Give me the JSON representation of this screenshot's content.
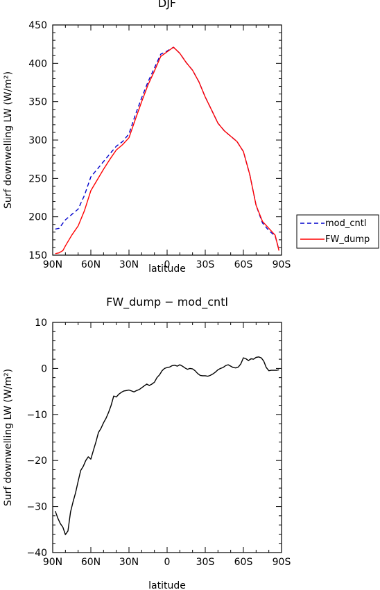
{
  "chart_data": [
    {
      "type": "line",
      "title": "DJF",
      "xlabel": "latitude",
      "ylabel": "Surf downwelling LW (W/m²)",
      "xlim": [
        -90,
        90
      ],
      "ylim": [
        150,
        450
      ],
      "x_ticks": [
        -90,
        -60,
        -30,
        0,
        30,
        60,
        90
      ],
      "x_tick_labels": [
        "90N",
        "60N",
        "30N",
        "0",
        "30S",
        "60S",
        "90S"
      ],
      "y_ticks": [
        150,
        200,
        250,
        300,
        350,
        400,
        450
      ],
      "y_tick_labels": [
        "150",
        "200",
        "250",
        "300",
        "350",
        "400",
        "450"
      ],
      "grid": false,
      "legend_position": "right",
      "series": [
        {
          "name": "mod_cntl",
          "color": "#0000cc",
          "dash": "dashed",
          "x": [
            -88,
            -85,
            -80,
            -75,
            -70,
            -65,
            -60,
            -55,
            -50,
            -45,
            -40,
            -35,
            -30,
            -25,
            -20,
            -15,
            -10,
            -5,
            0,
            5,
            10,
            15,
            20,
            25,
            30,
            35,
            40,
            45,
            50,
            55,
            60,
            65,
            70,
            75,
            80,
            85,
            88
          ],
          "y": [
            184,
            185,
            196,
            203,
            210,
            228,
            252,
            262,
            272,
            282,
            292,
            298,
            308,
            333,
            355,
            376,
            394,
            412,
            416,
            421,
            413,
            401,
            391,
            376,
            356,
            339,
            322,
            312,
            305,
            298,
            285,
            255,
            215,
            192,
            182,
            175,
            157
          ]
        },
        {
          "name": "FW_dump",
          "color": "#ff0000",
          "dash": "solid",
          "x": [
            -88,
            -85,
            -82,
            -80,
            -75,
            -70,
            -65,
            -60,
            -55,
            -50,
            -45,
            -40,
            -35,
            -30,
            -25,
            -20,
            -15,
            -10,
            -5,
            0,
            5,
            10,
            15,
            20,
            25,
            30,
            35,
            40,
            45,
            50,
            55,
            60,
            65,
            70,
            75,
            80,
            85,
            88
          ],
          "y": [
            152,
            153,
            156,
            162,
            176,
            188,
            208,
            234,
            248,
            262,
            275,
            287,
            294,
            303,
            327,
            350,
            372,
            390,
            409,
            415,
            421,
            413,
            401,
            391,
            376,
            356,
            339,
            322,
            312,
            305,
            298,
            285,
            255,
            215,
            194,
            185,
            176,
            156
          ]
        }
      ]
    },
    {
      "type": "line",
      "title": "FW_dump − mod_cntl",
      "xlabel": "latitude",
      "ylabel": "Surf downwelling LW (W/m²)",
      "xlim": [
        -90,
        90
      ],
      "ylim": [
        -40,
        10
      ],
      "x_ticks": [
        -90,
        -60,
        -30,
        0,
        30,
        60,
        90
      ],
      "x_tick_labels": [
        "90N",
        "60N",
        "30N",
        "0",
        "30S",
        "60S",
        "90S"
      ],
      "y_ticks": [
        -40,
        -30,
        -20,
        -10,
        0,
        10
      ],
      "y_tick_labels": [
        "−40",
        "−30",
        "−20",
        "−10",
        "0",
        "10"
      ],
      "grid": false,
      "series": [
        {
          "color": "#000000",
          "dash": "solid",
          "x": [
            -88,
            -86,
            -84,
            -82,
            -80,
            -78,
            -76,
            -74,
            -72,
            -70,
            -68,
            -66,
            -64,
            -62,
            -60,
            -58,
            -56,
            -54,
            -52,
            -50,
            -48,
            -46,
            -44,
            -42,
            -40,
            -38,
            -36,
            -34,
            -32,
            -30,
            -28,
            -26,
            -24,
            -22,
            -20,
            -18,
            -16,
            -14,
            -12,
            -10,
            -8,
            -6,
            -4,
            -2,
            0,
            2,
            4,
            6,
            8,
            10,
            12,
            14,
            16,
            18,
            20,
            22,
            24,
            26,
            28,
            30,
            32,
            34,
            36,
            38,
            40,
            42,
            44,
            46,
            48,
            50,
            52,
            54,
            56,
            58,
            60,
            62,
            64,
            66,
            68,
            70,
            72,
            74,
            76,
            78,
            80,
            82,
            84,
            86,
            88
          ],
          "y": [
            -31,
            -32.5,
            -33.7,
            -34.5,
            -36.1,
            -35.3,
            -31.2,
            -29,
            -27,
            -24.5,
            -22.2,
            -21.3,
            -20,
            -19.2,
            -19.7,
            -17.8,
            -16,
            -13.9,
            -13,
            -11.8,
            -10.8,
            -9.5,
            -8,
            -6,
            -6.2,
            -5.6,
            -5.2,
            -4.9,
            -4.8,
            -4.7,
            -4.9,
            -5.1,
            -4.8,
            -4.6,
            -4.2,
            -3.8,
            -3.4,
            -3.7,
            -3.4,
            -3,
            -2,
            -1.4,
            -0.5,
            0,
            0.2,
            0.3,
            0.6,
            0.7,
            0.5,
            0.8,
            0.5,
            0.1,
            -0.2,
            0,
            -0.1,
            -0.5,
            -1.1,
            -1.5,
            -1.6,
            -1.6,
            -1.7,
            -1.5,
            -1.2,
            -0.8,
            -0.3,
            0,
            0.2,
            0.6,
            0.8,
            0.5,
            0.2,
            0.1,
            0.3,
            1,
            2.3,
            2.1,
            1.7,
            2.1,
            2,
            2.4,
            2.5,
            2.3,
            1.6,
            0.2,
            -0.5,
            -0.4,
            -0.4,
            -0.4,
            -0.3
          ]
        }
      ]
    }
  ]
}
